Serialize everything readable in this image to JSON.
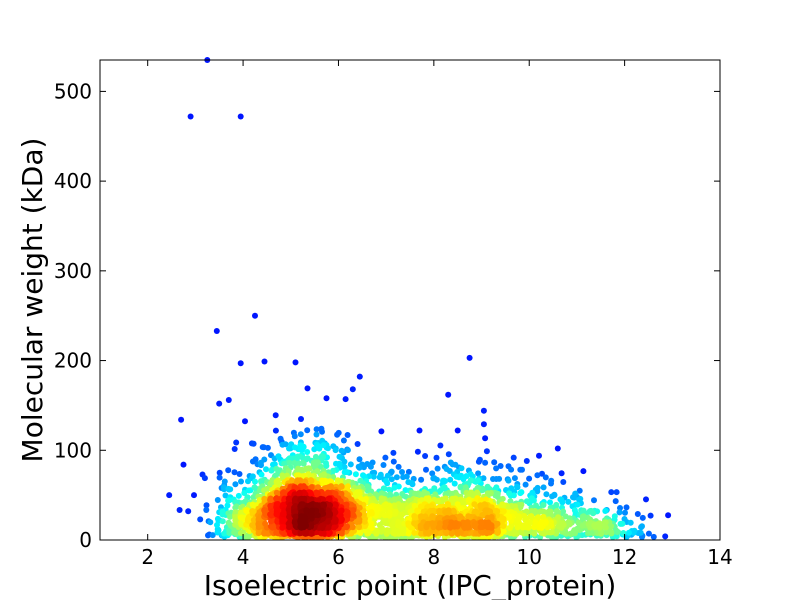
{
  "chart_data": {
    "type": "scatter",
    "title": "",
    "xlabel": "Isoelectric point (IPC_protein)",
    "ylabel": "Molecular weight (kDa)",
    "xlim": [
      1,
      14
    ],
    "ylim": [
      0,
      535
    ],
    "xticks": [
      2,
      4,
      6,
      8,
      10,
      12,
      14
    ],
    "yticks": [
      0,
      100,
      200,
      300,
      400,
      500
    ],
    "grid": false,
    "legend": "none",
    "colormap": "jet (point density)",
    "colors": {
      "low_density": "#00008f",
      "mid_density": "#00ffff",
      "high_density": "#ff0000"
    },
    "outliers": [
      {
        "x": 3.25,
        "y": 535
      },
      {
        "x": 2.9,
        "y": 472
      },
      {
        "x": 3.95,
        "y": 472
      },
      {
        "x": 4.25,
        "y": 250
      },
      {
        "x": 3.45,
        "y": 233
      },
      {
        "x": 3.95,
        "y": 197
      },
      {
        "x": 4.45,
        "y": 199
      },
      {
        "x": 5.1,
        "y": 198
      },
      {
        "x": 8.75,
        "y": 203
      },
      {
        "x": 2.7,
        "y": 134
      },
      {
        "x": 3.5,
        "y": 152
      },
      {
        "x": 3.7,
        "y": 156
      },
      {
        "x": 5.35,
        "y": 169
      },
      {
        "x": 6.3,
        "y": 168
      },
      {
        "x": 6.15,
        "y": 157
      },
      {
        "x": 5.75,
        "y": 158
      },
      {
        "x": 8.3,
        "y": 162
      },
      {
        "x": 9.05,
        "y": 144
      },
      {
        "x": 9.05,
        "y": 129
      },
      {
        "x": 8.5,
        "y": 122
      },
      {
        "x": 6.9,
        "y": 121
      },
      {
        "x": 7.7,
        "y": 122
      },
      {
        "x": 10.6,
        "y": 102
      },
      {
        "x": 2.75,
        "y": 84
      },
      {
        "x": 3.15,
        "y": 73
      },
      {
        "x": 3.2,
        "y": 69
      },
      {
        "x": 2.45,
        "y": 50
      },
      {
        "x": 2.85,
        "y": 32
      },
      {
        "x": 3.1,
        "y": 23
      },
      {
        "x": 3.55,
        "y": 58
      },
      {
        "x": 12.85,
        "y": 4
      },
      {
        "x": 12.15,
        "y": 10
      },
      {
        "x": 9.95,
        "y": 88
      },
      {
        "x": 9.7,
        "y": 69
      },
      {
        "x": 11.0,
        "y": 48
      }
    ],
    "clusters": [
      {
        "x": 5.3,
        "y": 30,
        "sx": 0.7,
        "sy": 22,
        "n": 1500
      },
      {
        "x": 8.6,
        "y": 25,
        "sx": 1.0,
        "sy": 18,
        "n": 900
      },
      {
        "x": 7.0,
        "y": 25,
        "sx": 1.2,
        "sy": 22,
        "n": 500
      },
      {
        "x": 10.8,
        "y": 18,
        "sx": 0.7,
        "sy": 13,
        "n": 260
      },
      {
        "x": 5.3,
        "y": 75,
        "sx": 0.6,
        "sy": 25,
        "n": 260
      },
      {
        "x": 4.2,
        "y": 22,
        "sx": 0.4,
        "sy": 15,
        "n": 150
      },
      {
        "x": 8.6,
        "y": 60,
        "sx": 1.1,
        "sy": 20,
        "n": 160
      },
      {
        "x": 11.8,
        "y": 10,
        "sx": 0.3,
        "sy": 6,
        "n": 40
      }
    ]
  }
}
